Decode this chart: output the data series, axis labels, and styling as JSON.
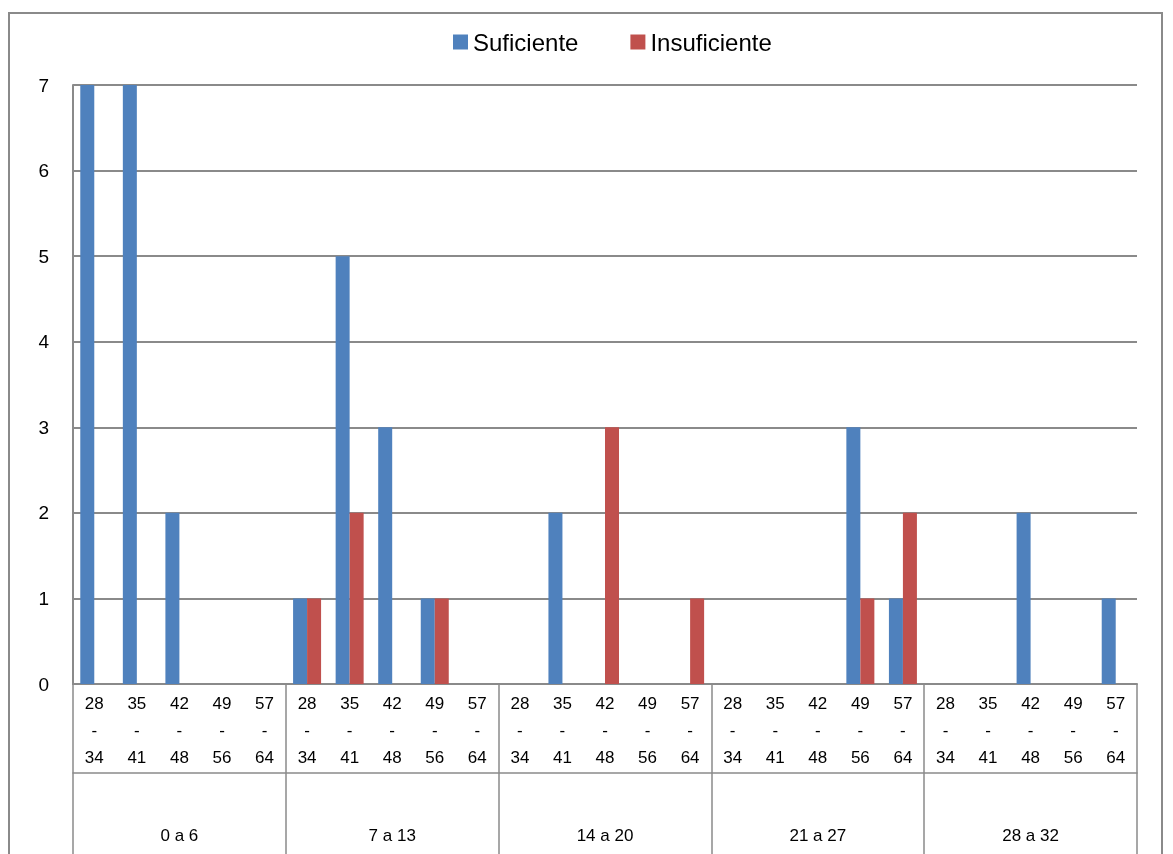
{
  "chart_data": {
    "type": "bar",
    "categories": [
      "28 - 34",
      "35 - 41",
      "42 - 48",
      "49 - 56",
      "57 - 64",
      "28 - 34",
      "35 - 41",
      "42 - 48",
      "49 - 56",
      "57 - 64",
      "28 - 34",
      "35 - 41",
      "42 - 48",
      "49 - 56",
      "57 - 64",
      "28 - 34",
      "35 - 41",
      "42 - 48",
      "49 - 56",
      "57 - 64",
      "28 - 34",
      "35 - 41",
      "42 - 48",
      "49 - 56",
      "57 - 64"
    ],
    "series": [
      {
        "name": "Suficiente",
        "color": "#4f81bd",
        "values": [
          7,
          7,
          2,
          0,
          0,
          1,
          5,
          3,
          1,
          0,
          0,
          2,
          0,
          0,
          0,
          0,
          0,
          0,
          3,
          1,
          0,
          0,
          2,
          0,
          1
        ]
      },
      {
        "name": "Insuficiente",
        "color": "#c0504d",
        "values": [
          0,
          0,
          0,
          0,
          0,
          1,
          2,
          0,
          1,
          0,
          0,
          0,
          3,
          0,
          1,
          0,
          0,
          0,
          1,
          2,
          0,
          0,
          0,
          0,
          0
        ]
      }
    ],
    "ylim": [
      0,
      7
    ],
    "yticks": [
      0,
      1,
      2,
      3,
      4,
      5,
      6,
      7
    ],
    "grid": "y",
    "legend": "top",
    "annotations": [
      "0 a 6",
      "7 a 13",
      "14 a 20",
      "21 a 27",
      "28 a 32"
    ]
  }
}
